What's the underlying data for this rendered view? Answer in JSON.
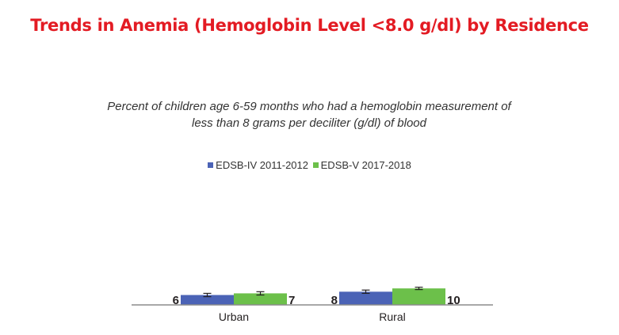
{
  "chart_data": {
    "type": "bar",
    "title": "Trends in Anemia (Hemoglobin Level <8.0 g/dl) by Residence",
    "subtitle_lines": [
      "Percent of children age 6-59 months who had a hemoglobin measurement of",
      "less than 8 grams per deciliter (g/dl) of blood"
    ],
    "categories": [
      "Urban",
      "Rural"
    ],
    "series": [
      {
        "name": "EDSB-IV 2011-2012",
        "values": [
          6,
          8
        ],
        "error_low": [
          5,
          7
        ],
        "error_high": [
          7,
          9
        ],
        "color": "#4b63b6"
      },
      {
        "name": "EDSB-V 2017-2018",
        "values": [
          7,
          10
        ],
        "error_low": [
          6,
          9.3
        ],
        "error_high": [
          8,
          10.7
        ],
        "color": "#6cc04a"
      }
    ],
    "ylim": [
      0,
      120
    ],
    "grid": false,
    "legend_position": "top-center",
    "axis_color": "#8c8c8c",
    "title_color": "#e31b23"
  }
}
